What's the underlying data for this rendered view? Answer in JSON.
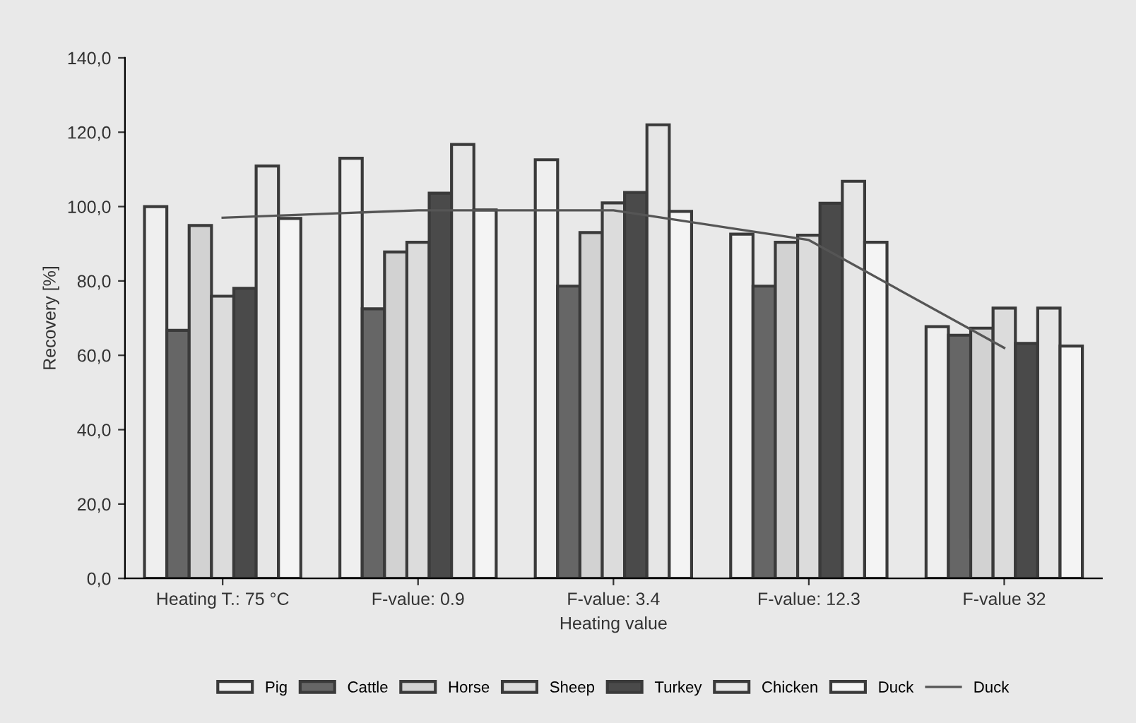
{
  "chart_data": {
    "type": "bar",
    "xlabel": "Heating value",
    "ylabel": "Recovery [%]",
    "categories": [
      "Heating T.: 75 °C",
      "F-value: 0.9",
      "F-value: 3.4",
      "F-value: 12.3",
      "F-value 32"
    ],
    "series": [
      {
        "name": "Pig",
        "color": "#efefef",
        "values": [
          100,
          113,
          112.6,
          92.6,
          67.7
        ]
      },
      {
        "name": "Cattle",
        "color": "#666666",
        "values": [
          66.7,
          72.5,
          78.6,
          78.6,
          65.4
        ]
      },
      {
        "name": "Horse",
        "color": "#d2d2d2",
        "values": [
          94.9,
          87.8,
          93,
          90.4,
          67.3
        ]
      },
      {
        "name": "Sheep",
        "color": "#dcdcdc",
        "values": [
          75.9,
          90.4,
          101,
          92.3,
          72.7
        ]
      },
      {
        "name": "Turkey",
        "color": "#4a4a4a",
        "values": [
          78,
          103.6,
          103.8,
          100.9,
          63.2
        ]
      },
      {
        "name": "Chicken",
        "color": "#e6e6e6",
        "values": [
          110.9,
          116.7,
          122,
          106.8,
          72.7
        ]
      },
      {
        "name": "Duck",
        "color": "#f4f4f4",
        "values": [
          96.8,
          99.1,
          98.7,
          90.4,
          62.5
        ]
      },
      {
        "name": "Duck",
        "type": "line",
        "color": "#555555",
        "values": [
          97,
          99,
          99,
          91,
          62
        ]
      }
    ],
    "ylim": [
      0,
      140
    ],
    "yticks": [
      {
        "value": 0,
        "label": "0,0"
      },
      {
        "value": 20,
        "label": "20,0"
      },
      {
        "value": 40,
        "label": "40,0"
      },
      {
        "value": 60,
        "label": "60,0"
      },
      {
        "value": 80,
        "label": "80,0"
      },
      {
        "value": 100,
        "label": "100,0"
      },
      {
        "value": 120,
        "label": "120,0"
      },
      {
        "value": 140,
        "label": "140,0"
      }
    ],
    "grid": false,
    "legend": "bottom",
    "marker": "none",
    "line_style": "solid"
  }
}
